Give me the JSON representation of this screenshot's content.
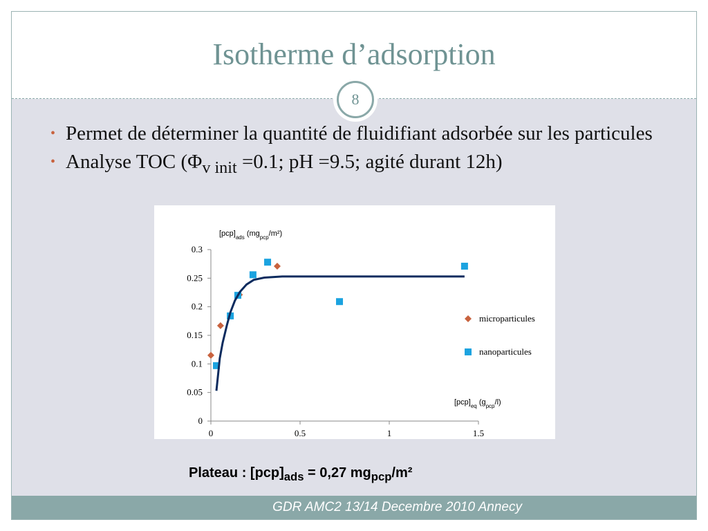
{
  "slide": {
    "title": "Isotherme d’adsorption",
    "number": "8",
    "bullets": [
      [
        "Permet de déterminer la quantité de fluidifiant adsorbée sur les particules"
      ],
      [
        "Analyse TOC (Φ",
        "v init",
        " =0.1; pH =9.5; agité durant 12h)"
      ]
    ],
    "plateau": [
      "Plateau : [pcp]",
      "ads",
      " = 0,27 mg",
      "pcp",
      "/m²"
    ],
    "footer": "GDR AMC2 13/14 Decembre 2010 Annecy"
  },
  "chart_data": {
    "type": "scatter",
    "ylabel": [
      "[pcp]",
      "ads",
      " (mg",
      "pcp",
      "/m²)"
    ],
    "xlabel": [
      "[pcp]",
      "eq",
      " (g",
      "pcp",
      "/l)"
    ],
    "xlim": [
      0,
      1.5
    ],
    "xticks": [
      0,
      0.5,
      1,
      1.5
    ],
    "ylim": [
      0,
      0.3
    ],
    "yticks": [
      0,
      0.05,
      0.1,
      0.15,
      0.2,
      0.25,
      0.3
    ],
    "legend": "right",
    "series": [
      {
        "name": "microparticules",
        "color": "#c8623e",
        "marker": "diamond",
        "x": [
          0,
          0.054,
          0.16,
          0.372
        ],
        "values": [
          0.115,
          0.167,
          0.221,
          0.271
        ]
      },
      {
        "name": "nanoparticules",
        "color": "#1ba3e0",
        "marker": "square",
        "x": [
          0.031,
          0.109,
          0.151,
          0.236,
          0.318,
          0.721,
          1.422
        ],
        "values": [
          0.097,
          0.184,
          0.22,
          0.256,
          0.278,
          0.209,
          0.271
        ]
      },
      {
        "color": "#0c2b5e",
        "marker": "line",
        "x": [
          0.031,
          0.05,
          0.066,
          0.09,
          0.109,
          0.135,
          0.163,
          0.2,
          0.24,
          0.3,
          0.4,
          0.6,
          1.0,
          1.422
        ],
        "values": [
          0.053,
          0.11,
          0.137,
          0.168,
          0.19,
          0.211,
          0.226,
          0.239,
          0.247,
          0.251,
          0.253,
          0.253,
          0.253,
          0.253
        ]
      }
    ]
  }
}
